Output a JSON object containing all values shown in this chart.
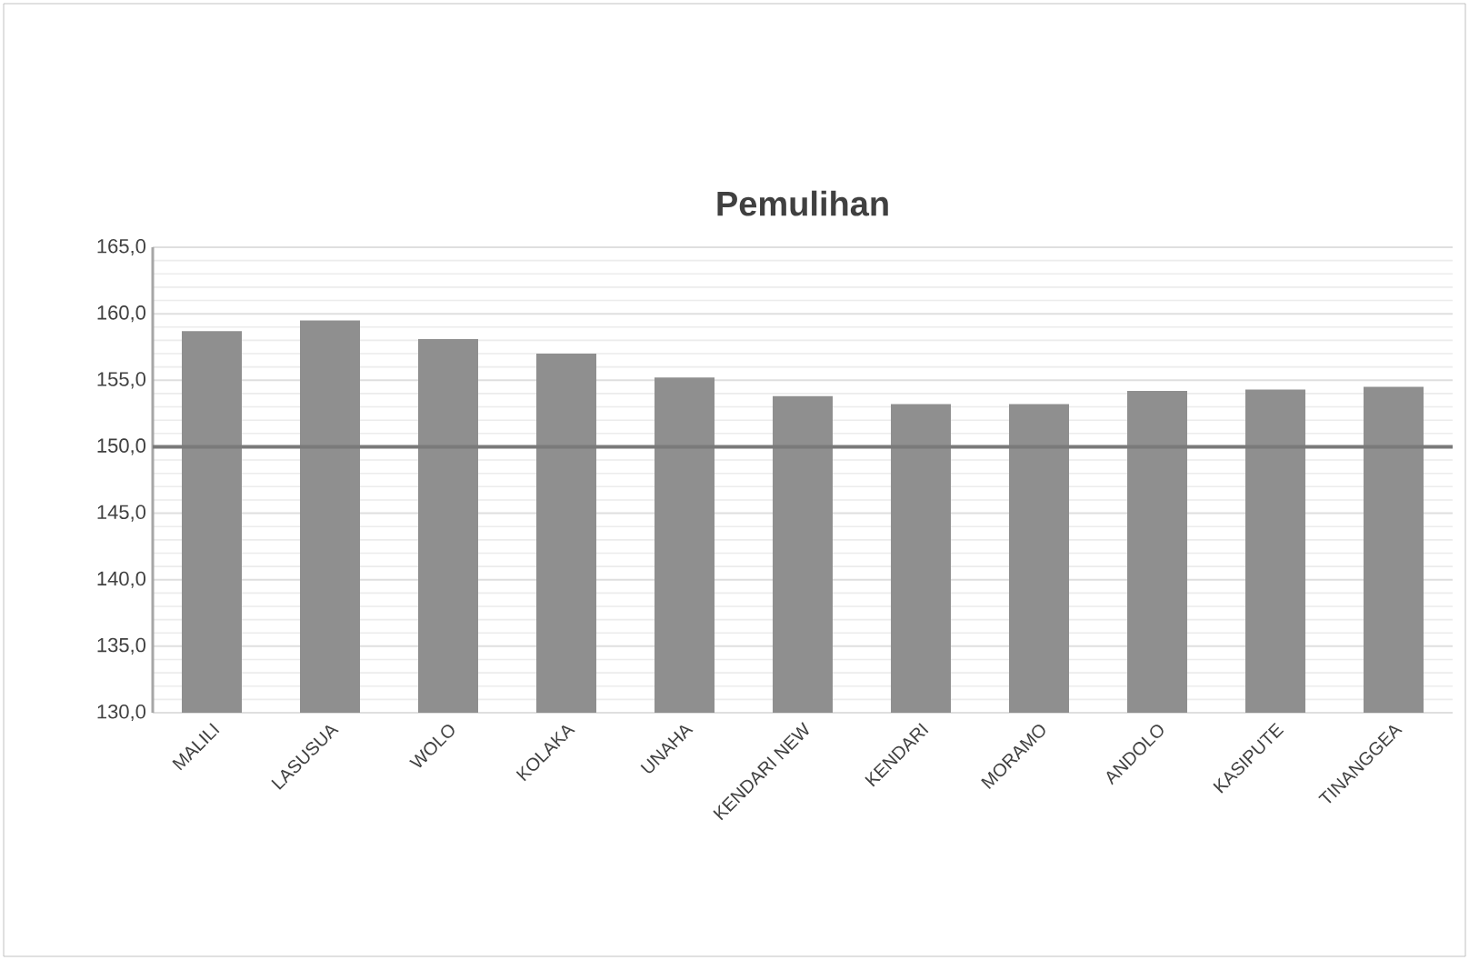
{
  "chart_data": {
    "type": "bar",
    "title": "Pemulihan",
    "categories": [
      "MALILI",
      "LASUSUA",
      "WOLO",
      "KOLAKA",
      "UNAHA",
      "KENDARI NEW",
      "KENDARI",
      "MORAMO",
      "ANDOLO",
      "KASIPUTE",
      "TINANGGEA"
    ],
    "values": [
      158.7,
      159.5,
      158.1,
      157.0,
      155.2,
      153.8,
      153.2,
      153.2,
      154.2,
      154.3,
      154.5
    ],
    "color": "#8f8f8f",
    "ylim": [
      130,
      165
    ],
    "yticks": [
      {
        "value": 130,
        "label": "130,0"
      },
      {
        "value": 135,
        "label": "135,0"
      },
      {
        "value": 140,
        "label": "140,0"
      },
      {
        "value": 145,
        "label": "145,0"
      },
      {
        "value": 150,
        "label": "150,0"
      },
      {
        "value": 155,
        "label": "155,0"
      },
      {
        "value": 160,
        "label": "160,0"
      },
      {
        "value": 165,
        "label": "165,0"
      }
    ],
    "grid": "y",
    "ref_lines": [
      {
        "axis": "y",
        "value": 150,
        "label": null,
        "color": "#7a7a7a"
      }
    ]
  }
}
